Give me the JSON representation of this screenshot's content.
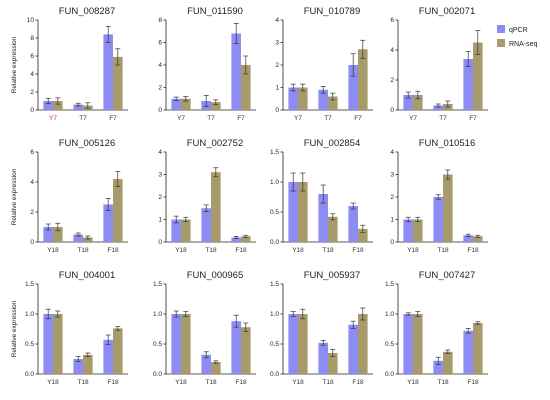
{
  "legend": {
    "items": [
      {
        "label": "qPCR",
        "color": "#8c8cf2"
      },
      {
        "label": "RNA-seq",
        "color": "#a89b6b"
      }
    ]
  },
  "chart_data": [
    {
      "type": "bar",
      "title": "FUN_008287",
      "ylabel": "Relative expression",
      "ylim": [
        0,
        10
      ],
      "yticks": [
        0,
        2,
        4,
        6,
        8,
        10
      ],
      "categories": [
        "Y7",
        "T7",
        "F7"
      ],
      "category_colors": [
        "#c0266a",
        "#333333",
        "#333333"
      ],
      "series": [
        {
          "name": "qPCR",
          "color": "#8c8cf2",
          "values": [
            1.0,
            0.6,
            8.4
          ],
          "errors": [
            0.3,
            0.15,
            0.9
          ]
        },
        {
          "name": "RNA-seq",
          "color": "#a89b6b",
          "values": [
            1.0,
            0.5,
            5.9
          ],
          "errors": [
            0.35,
            0.3,
            0.9
          ]
        }
      ]
    },
    {
      "type": "bar",
      "title": "FUN_011590",
      "ylabel": "",
      "ylim": [
        0,
        8
      ],
      "yticks": [
        0,
        2,
        4,
        6,
        8
      ],
      "categories": [
        "Y7",
        "T7",
        "F7"
      ],
      "category_colors": [
        "#333333",
        "#333333",
        "#333333"
      ],
      "series": [
        {
          "name": "qPCR",
          "color": "#8c8cf2",
          "values": [
            1.0,
            0.8,
            6.8
          ],
          "errors": [
            0.15,
            0.5,
            0.9
          ]
        },
        {
          "name": "RNA-seq",
          "color": "#a89b6b",
          "values": [
            1.0,
            0.7,
            4.0
          ],
          "errors": [
            0.2,
            0.2,
            0.8
          ]
        }
      ]
    },
    {
      "type": "bar",
      "title": "FUN_010789",
      "ylabel": "",
      "ylim": [
        0,
        4
      ],
      "yticks": [
        0,
        1,
        2,
        3,
        4
      ],
      "categories": [
        "Y7",
        "T7",
        "F7"
      ],
      "category_colors": [
        "#333333",
        "#333333",
        "#333333"
      ],
      "series": [
        {
          "name": "qPCR",
          "color": "#8c8cf2",
          "values": [
            1.0,
            0.9,
            2.0
          ],
          "errors": [
            0.15,
            0.15,
            0.5
          ]
        },
        {
          "name": "RNA-seq",
          "color": "#a89b6b",
          "values": [
            1.0,
            0.6,
            2.7
          ],
          "errors": [
            0.15,
            0.15,
            0.4
          ]
        }
      ]
    },
    {
      "type": "bar",
      "title": "FUN_002071",
      "ylabel": "",
      "ylim": [
        0,
        6
      ],
      "yticks": [
        0,
        2,
        4,
        6
      ],
      "categories": [
        "Y7",
        "T7",
        "F7"
      ],
      "category_colors": [
        "#333333",
        "#333333",
        "#333333"
      ],
      "series": [
        {
          "name": "qPCR",
          "color": "#8c8cf2",
          "values": [
            1.0,
            0.3,
            3.4
          ],
          "errors": [
            0.2,
            0.1,
            0.5
          ]
        },
        {
          "name": "RNA-seq",
          "color": "#a89b6b",
          "values": [
            1.0,
            0.4,
            4.5
          ],
          "errors": [
            0.25,
            0.2,
            0.8
          ]
        }
      ]
    },
    {
      "type": "bar",
      "title": "FUN_005126",
      "ylabel": "Relative expression",
      "ylim": [
        0,
        6
      ],
      "yticks": [
        0,
        2,
        4,
        6
      ],
      "categories": [
        "Y18",
        "T18",
        "F18"
      ],
      "category_colors": [
        "#333333",
        "#333333",
        "#333333"
      ],
      "series": [
        {
          "name": "qPCR",
          "color": "#8c8cf2",
          "values": [
            1.0,
            0.5,
            2.5
          ],
          "errors": [
            0.2,
            0.1,
            0.4
          ]
        },
        {
          "name": "RNA-seq",
          "color": "#a89b6b",
          "values": [
            1.0,
            0.3,
            4.2
          ],
          "errors": [
            0.25,
            0.1,
            0.5
          ]
        }
      ]
    },
    {
      "type": "bar",
      "title": "FUN_002752",
      "ylabel": "",
      "ylim": [
        0,
        4
      ],
      "yticks": [
        0,
        1,
        2,
        3,
        4
      ],
      "categories": [
        "Y18",
        "T18",
        "F18"
      ],
      "category_colors": [
        "#333333",
        "#333333",
        "#333333"
      ],
      "series": [
        {
          "name": "qPCR",
          "color": "#8c8cf2",
          "values": [
            1.0,
            1.5,
            0.2
          ],
          "errors": [
            0.15,
            0.15,
            0.05
          ]
        },
        {
          "name": "RNA-seq",
          "color": "#a89b6b",
          "values": [
            1.0,
            3.1,
            0.25
          ],
          "errors": [
            0.1,
            0.2,
            0.05
          ]
        }
      ]
    },
    {
      "type": "bar",
      "title": "FUN_002854",
      "ylabel": "",
      "ylim": [
        0,
        1.5
      ],
      "yticks": [
        0.0,
        0.5,
        1.0,
        1.5
      ],
      "categories": [
        "Y18",
        "T18",
        "F18"
      ],
      "category_colors": [
        "#333333",
        "#333333",
        "#333333"
      ],
      "series": [
        {
          "name": "qPCR",
          "color": "#8c8cf2",
          "values": [
            1.0,
            0.8,
            0.6
          ],
          "errors": [
            0.15,
            0.15,
            0.05
          ]
        },
        {
          "name": "RNA-seq",
          "color": "#a89b6b",
          "values": [
            1.0,
            0.42,
            0.22
          ],
          "errors": [
            0.15,
            0.05,
            0.06
          ]
        }
      ]
    },
    {
      "type": "bar",
      "title": "FUN_010516",
      "ylabel": "",
      "ylim": [
        0,
        4
      ],
      "yticks": [
        0,
        1,
        2,
        3,
        4
      ],
      "categories": [
        "Y18",
        "T18",
        "F18"
      ],
      "category_colors": [
        "#333333",
        "#333333",
        "#333333"
      ],
      "series": [
        {
          "name": "qPCR",
          "color": "#8c8cf2",
          "values": [
            1.0,
            2.0,
            0.3
          ],
          "errors": [
            0.1,
            0.1,
            0.05
          ]
        },
        {
          "name": "RNA-seq",
          "color": "#a89b6b",
          "values": [
            1.0,
            3.0,
            0.25
          ],
          "errors": [
            0.1,
            0.2,
            0.05
          ]
        }
      ]
    },
    {
      "type": "bar",
      "title": "FUN_004001",
      "ylabel": "Relative expression",
      "ylim": [
        0,
        1.5
      ],
      "yticks": [
        0.0,
        0.5,
        1.0,
        1.5
      ],
      "categories": [
        "Y18",
        "T18",
        "F18"
      ],
      "category_colors": [
        "#333333",
        "#333333",
        "#333333"
      ],
      "series": [
        {
          "name": "qPCR",
          "color": "#8c8cf2",
          "values": [
            1.0,
            0.25,
            0.57
          ],
          "errors": [
            0.08,
            0.04,
            0.08
          ]
        },
        {
          "name": "RNA-seq",
          "color": "#a89b6b",
          "values": [
            1.0,
            0.32,
            0.76
          ],
          "errors": [
            0.05,
            0.03,
            0.03
          ]
        }
      ]
    },
    {
      "type": "bar",
      "title": "FUN_000965",
      "ylabel": "",
      "ylim": [
        0,
        1.5
      ],
      "yticks": [
        0.0,
        0.5,
        1.0,
        1.5
      ],
      "categories": [
        "Y18",
        "T18",
        "F18"
      ],
      "category_colors": [
        "#333333",
        "#333333",
        "#333333"
      ],
      "series": [
        {
          "name": "qPCR",
          "color": "#8c8cf2",
          "values": [
            1.0,
            0.32,
            0.88
          ],
          "errors": [
            0.05,
            0.05,
            0.1
          ]
        },
        {
          "name": "RNA-seq",
          "color": "#a89b6b",
          "values": [
            1.0,
            0.2,
            0.78
          ],
          "errors": [
            0.04,
            0.02,
            0.07
          ]
        }
      ]
    },
    {
      "type": "bar",
      "title": "FUN_005937",
      "ylabel": "",
      "ylim": [
        0,
        1.5
      ],
      "yticks": [
        0.0,
        0.5,
        1.0,
        1.5
      ],
      "categories": [
        "Y18",
        "T18",
        "F18"
      ],
      "category_colors": [
        "#333333",
        "#333333",
        "#333333"
      ],
      "series": [
        {
          "name": "qPCR",
          "color": "#8c8cf2",
          "values": [
            1.0,
            0.52,
            0.82
          ],
          "errors": [
            0.04,
            0.04,
            0.06
          ]
        },
        {
          "name": "RNA-seq",
          "color": "#a89b6b",
          "values": [
            1.0,
            0.35,
            1.0
          ],
          "errors": [
            0.08,
            0.06,
            0.1
          ]
        }
      ]
    },
    {
      "type": "bar",
      "title": "FUN_007427",
      "ylabel": "",
      "ylim": [
        0,
        1.5
      ],
      "yticks": [
        0.0,
        0.5,
        1.0,
        1.5
      ],
      "categories": [
        "Y18",
        "T18",
        "F18"
      ],
      "category_colors": [
        "#333333",
        "#333333",
        "#333333"
      ],
      "series": [
        {
          "name": "qPCR",
          "color": "#8c8cf2",
          "values": [
            1.0,
            0.22,
            0.72
          ],
          "errors": [
            0.02,
            0.06,
            0.04
          ]
        },
        {
          "name": "RNA-seq",
          "color": "#a89b6b",
          "values": [
            1.0,
            0.37,
            0.85
          ],
          "errors": [
            0.04,
            0.03,
            0.02
          ]
        }
      ]
    }
  ]
}
